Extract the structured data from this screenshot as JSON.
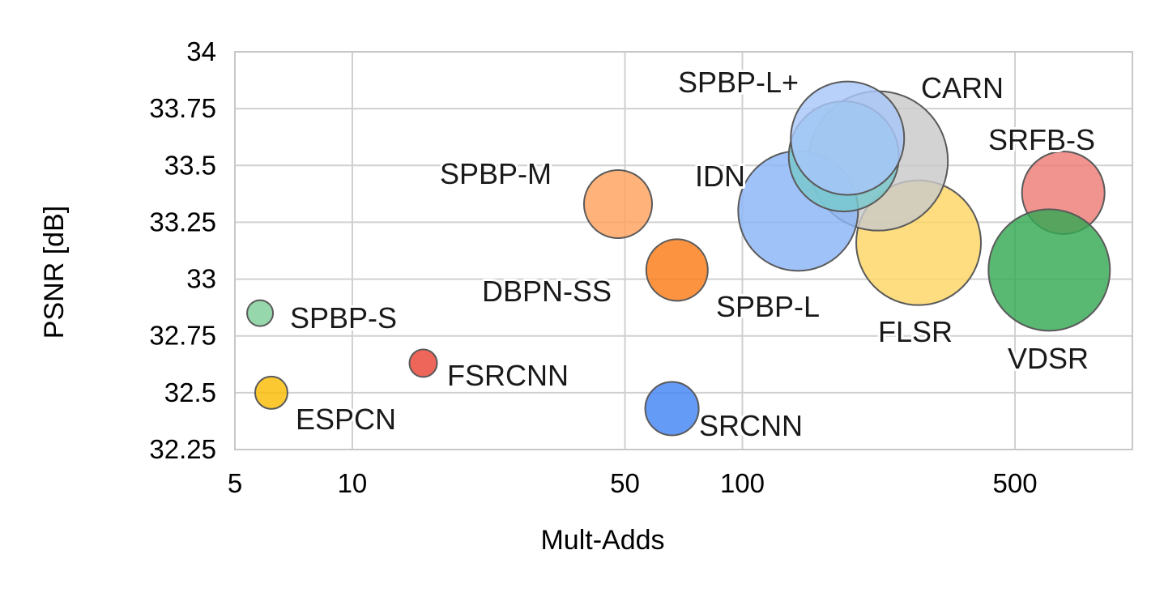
{
  "chart_data": {
    "type": "scatter",
    "xlabel": "Mult-Adds",
    "ylabel": "PSNR [dB]",
    "xscale": "log",
    "xlim": [
      5,
      1000
    ],
    "ylim": [
      32.25,
      34
    ],
    "xticks": [
      5,
      10,
      50,
      100,
      500
    ],
    "yticks": [
      32.25,
      32.5,
      32.75,
      33,
      33.25,
      33.5,
      33.75,
      34
    ],
    "grid": true,
    "points": [
      {
        "name": "SPBP-S",
        "x": 5.8,
        "y": 32.85,
        "color": "#7fcf98"
      },
      {
        "name": "ESPCN",
        "x": 6.2,
        "y": 32.5,
        "color": "#fbbc04"
      },
      {
        "name": "FSRCNN",
        "x": 15.2,
        "y": 32.63,
        "color": "#ea4335"
      },
      {
        "name": "SPBP-M",
        "x": 48,
        "y": 33.33,
        "color": "#ffa15c"
      },
      {
        "name": "DBPN-SS",
        "x": 68,
        "y": 33.04,
        "color": "#fa7b17"
      },
      {
        "name": "SRCNN",
        "x": 66,
        "y": 32.43,
        "color": "#4285f4"
      },
      {
        "name": "IDN",
        "x": 139,
        "y": 33.3,
        "color": "#8ab4f8"
      },
      {
        "name": "SPBP-L",
        "x": 182,
        "y": 33.54,
        "color": "#78c8cc"
      },
      {
        "name": "CARN",
        "x": 223,
        "y": 33.52,
        "color": "#c9c9c9"
      },
      {
        "name": "SPBP-L+",
        "x": 186,
        "y": 33.62,
        "color": "#a8c7fa"
      },
      {
        "name": "FLSR",
        "x": 283,
        "y": 33.16,
        "color": "#fdd663"
      },
      {
        "name": "SRFB-S",
        "x": 665,
        "y": 33.38,
        "color": "#ee7b75"
      },
      {
        "name": "VDSR",
        "x": 612,
        "y": 33.04,
        "color": "#34a853"
      }
    ]
  }
}
